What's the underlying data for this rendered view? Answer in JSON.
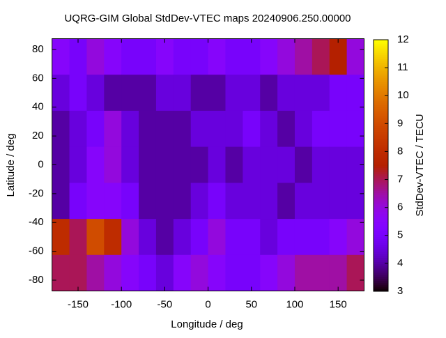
{
  "chart_data": {
    "type": "heatmap",
    "title": "UQRG-GIM Global StdDev-VTEC maps 20240906.250.00000",
    "x_label": "Longitude / deg",
    "y_label": "Latitude / deg",
    "colorbar_label": "StdDev-VTEC / TECU",
    "x": [
      -170,
      -150,
      -130,
      -110,
      -90,
      -70,
      -50,
      -30,
      -10,
      10,
      30,
      50,
      70,
      90,
      110,
      130,
      150,
      170
    ],
    "y": [
      75,
      50,
      25,
      0,
      -25,
      -50,
      -75
    ],
    "z": [
      [
        5.5,
        5,
        6,
        5.5,
        5,
        5,
        5.5,
        5,
        5,
        5.5,
        5,
        5,
        5.5,
        6,
        6.5,
        7,
        7.5,
        6
      ],
      [
        4.5,
        5,
        4.5,
        4,
        4,
        4,
        4.5,
        4.5,
        4,
        4,
        4.5,
        4.5,
        4,
        4.5,
        4.5,
        4.5,
        5,
        5
      ],
      [
        4,
        4.5,
        5,
        6,
        4.5,
        4,
        4,
        4,
        4.5,
        4.5,
        4.5,
        5,
        4.5,
        4,
        4.5,
        5,
        5,
        5
      ],
      [
        4,
        4.5,
        5.5,
        6,
        4.5,
        4,
        4,
        4,
        4,
        4.5,
        4,
        4.5,
        4.5,
        4.5,
        4,
        4.5,
        4.5,
        4.5
      ],
      [
        4,
        5,
        5.5,
        5.5,
        5,
        4,
        4,
        4,
        4.5,
        5,
        4.5,
        4.5,
        4.5,
        4,
        4.5,
        4.5,
        4.5,
        4.5
      ],
      [
        8,
        7,
        9,
        8,
        6,
        4.5,
        4,
        4.5,
        5,
        6,
        5,
        5,
        4.5,
        5,
        5,
        5,
        5.5,
        6
      ],
      [
        7,
        7,
        6.5,
        6,
        5.5,
        5,
        4.5,
        5.5,
        6,
        5.5,
        5,
        5,
        5.5,
        6,
        6.5,
        6.5,
        6.5,
        7
      ]
    ],
    "xlim": [
      -180,
      180
    ],
    "ylim": [
      -87.5,
      87.5
    ],
    "xticks": [
      -150,
      -100,
      -50,
      0,
      50,
      100,
      150
    ],
    "yticks": [
      -80,
      -60,
      -40,
      -20,
      0,
      20,
      40,
      60,
      80
    ],
    "zlim": [
      3,
      12
    ],
    "zticks": [
      3,
      4,
      5,
      6,
      7,
      8,
      9,
      10,
      11,
      12
    ]
  }
}
